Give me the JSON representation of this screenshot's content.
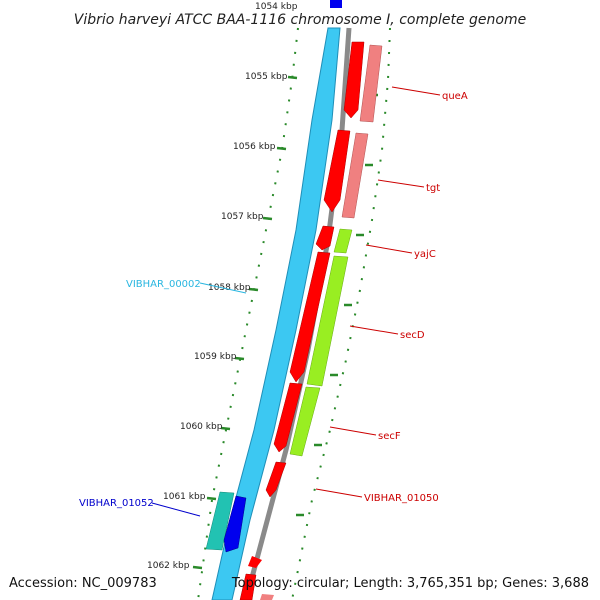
{
  "title": "Vibrio harveyi ATCC BAA-1116 chromosome I, complete genome",
  "footer": {
    "accession": "Accession: NC_009783",
    "summary": "Topology: circular; Length: 3,765,351 bp; Genes: 3,688"
  },
  "ticks": [
    {
      "label": "1054 kbp"
    },
    {
      "label": "1055 kbp"
    },
    {
      "label": "1056 kbp"
    },
    {
      "label": "1057 kbp"
    },
    {
      "label": "1058 kbp"
    },
    {
      "label": "1059 kbp"
    },
    {
      "label": "1060 kbp"
    },
    {
      "label": "1061 kbp"
    },
    {
      "label": "1062 kbp"
    }
  ],
  "genes": [
    {
      "name": "queA",
      "color": "#cc0000"
    },
    {
      "name": "tgt",
      "color": "#cc0000"
    },
    {
      "name": "yajC",
      "color": "#cc0000"
    },
    {
      "name": "secD",
      "color": "#cc0000"
    },
    {
      "name": "secF",
      "color": "#cc0000"
    },
    {
      "name": "VIBHAR_01050",
      "color": "#cc0000"
    },
    {
      "name": "VIBHAR_00002",
      "color": "#29b6e0"
    },
    {
      "name": "VIBHAR_01052",
      "color": "#0000cc"
    }
  ],
  "colors": {
    "outer_ring": "#3cc8f2",
    "backbone": "#8a8a8a",
    "cds_forward": "#ff0000",
    "cds_pink": "#f08080",
    "cds_green": "#99ee22",
    "cds_teal": "#22c2b2",
    "cds_blue": "#0000ee",
    "tick_green": "#2a8a2a"
  }
}
